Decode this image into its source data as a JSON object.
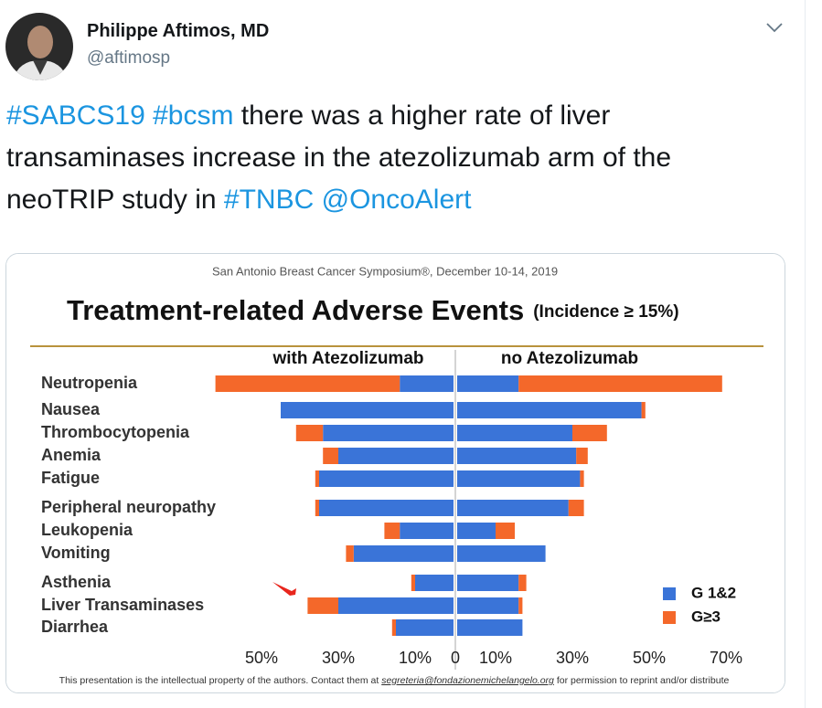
{
  "tweet": {
    "name": "Philippe Aftimos, MD",
    "handle": "@aftimosp",
    "segments": [
      {
        "text": "#SABCS19",
        "link": true
      },
      {
        "text": " ",
        "link": false
      },
      {
        "text": "#bcsm",
        "link": true
      },
      {
        "text": " there was a higher rate of liver transaminases increase in the atezolizumab arm of the neoTRIP study in ",
        "link": false
      },
      {
        "text": "#TNBC",
        "link": true
      },
      {
        "text": " ",
        "link": false
      },
      {
        "text": "@OncoAlert",
        "link": true
      }
    ]
  },
  "chart_data": {
    "type": "butterfly-bar",
    "subtitle": "San Antonio Breast Cancer Symposium®, December 10-14, 2019",
    "title": "Treatment-related Adverse Events",
    "title_note": "(Incidence ≥ 15%)",
    "categories": [
      "Neutropenia",
      "Nausea",
      "Thrombocytopenia",
      "Anemia",
      "Fatigue",
      "Peripheral neuropathy",
      "Leukopenia",
      "Vomiting",
      "Asthenia",
      "Liver Transaminases",
      "Diarrhea"
    ],
    "legend": [
      {
        "name": "G 1&2",
        "color": "#3a74d8"
      },
      {
        "name": "G≥3",
        "color": "#f4682a"
      }
    ],
    "xlim": [
      0,
      70
    ],
    "panels": [
      {
        "label": "with Atezolizumab",
        "xticks": [
          {
            "value": 50,
            "label": "50%"
          },
          {
            "value": 30,
            "label": "30%"
          },
          {
            "value": 10,
            "label": "10%"
          },
          0
        ],
        "series": [
          {
            "values": [
              14,
              45,
              34,
              30,
              35,
              35,
              14,
              26,
              10,
              30,
              15
            ]
          },
          {
            "values": [
              48,
              0,
              7,
              4,
              1,
              1,
              4,
              2,
              1,
              8,
              1
            ]
          }
        ]
      },
      {
        "label": "no Atezolizumab",
        "xticks": [
          {
            "value": 10,
            "label": "10%"
          },
          {
            "value": 30,
            "label": "30%"
          },
          {
            "value": 50,
            "label": "50%"
          },
          {
            "value": 70,
            "label": "70%"
          }
        ],
        "series": [
          {
            "values": [
              16,
              48,
              30,
              31,
              32,
              29,
              10,
              23,
              16,
              16,
              17
            ]
          },
          {
            "values": [
              53,
              1,
              9,
              3,
              1,
              4,
              5,
              0,
              2,
              1,
              0
            ]
          }
        ]
      }
    ],
    "footer": {
      "before": "This presentation is the intellectual property of the authors. Contact them at ",
      "email": "segreteria@fondazionemichelangelo.org",
      "after": " for permission to reprint and/or distribute"
    }
  }
}
